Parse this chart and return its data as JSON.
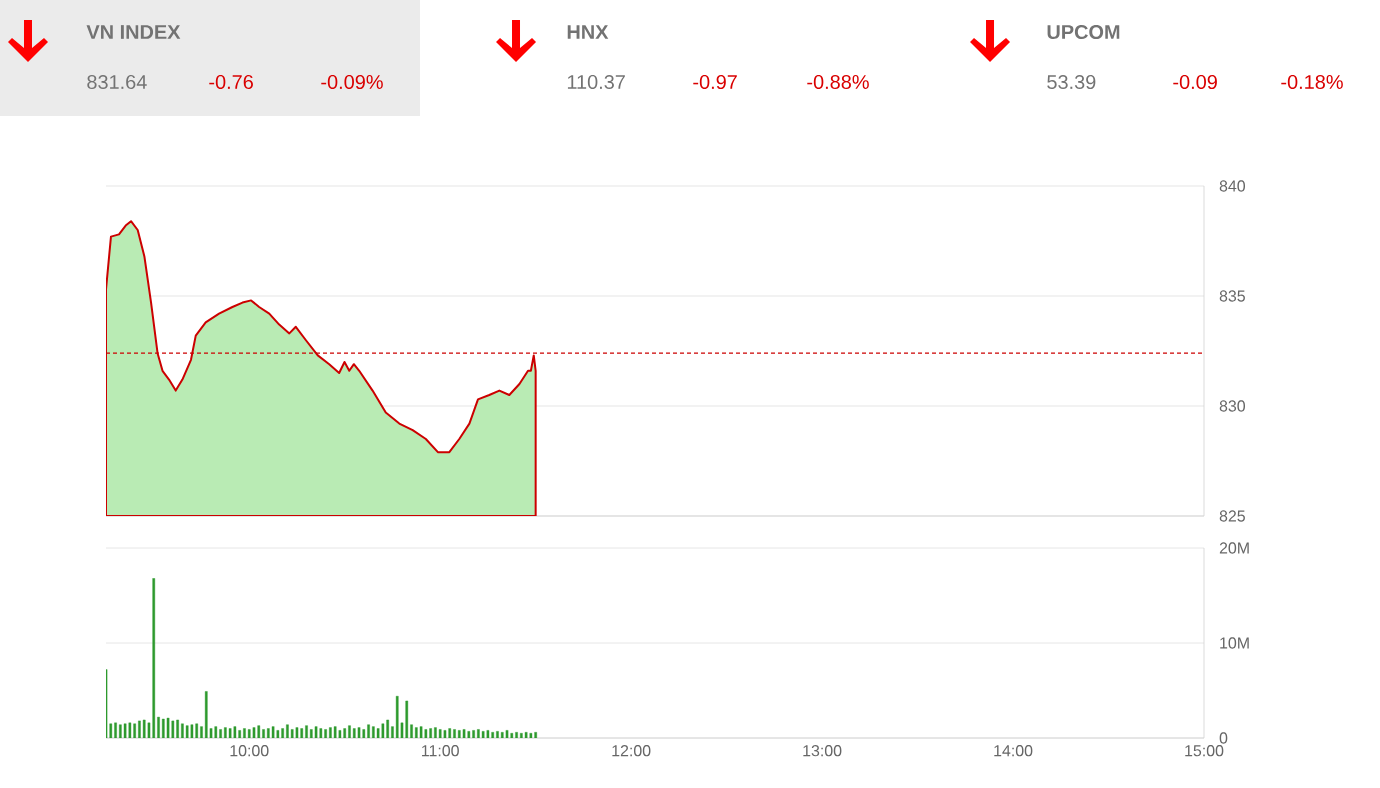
{
  "chart_data": [
    {
      "type": "other",
      "annotations": [
        "VN INDEX",
        "831.64",
        "-0.76",
        "-0.09%",
        "HNX",
        "110.37",
        "-0.97",
        "-0.88%",
        "UPCOM",
        "53.39",
        "-0.09",
        "-0.18%"
      ]
    },
    {
      "type": "area",
      "x": [
        9.25,
        9.276,
        9.318,
        9.353,
        9.381,
        9.416,
        9.451,
        9.486,
        9.52,
        9.546,
        9.58,
        9.615,
        9.65,
        9.695,
        9.72,
        9.772,
        9.842,
        9.912,
        9.965,
        10.01,
        10.052,
        10.105,
        10.157,
        10.21,
        10.244,
        10.296,
        10.359,
        10.419,
        10.471,
        10.499,
        10.524,
        10.548,
        10.576,
        10.646,
        10.715,
        10.786,
        10.856,
        10.925,
        10.988,
        11.048,
        11.1,
        11.153,
        11.198,
        11.257,
        11.31,
        11.362,
        11.415,
        11.46,
        11.475,
        11.49,
        11.5
      ],
      "series": [
        {
          "color": "#b9ebb4",
          "values": [
            835.3,
            837.7,
            837.8,
            838.2,
            838.4,
            838.0,
            836.8,
            834.7,
            832.4,
            831.6,
            831.2,
            830.7,
            831.2,
            832.1,
            833.2,
            833.8,
            834.2,
            834.5,
            834.7,
            834.8,
            834.5,
            834.2,
            833.7,
            833.3,
            833.6,
            833.0,
            832.3,
            831.9,
            831.5,
            832.0,
            831.6,
            831.9,
            831.6,
            830.7,
            829.7,
            829.2,
            828.9,
            828.5,
            827.9,
            827.9,
            828.5,
            829.2,
            830.3,
            830.5,
            830.7,
            830.5,
            831.0,
            831.6,
            831.6,
            832.3,
            831.6
          ]
        }
      ],
      "xlim": [
        9.25,
        15
      ],
      "ylim": [
        825,
        840
      ],
      "yticks": [
        825,
        830,
        835,
        840
      ],
      "grid": "y",
      "tick_labels": "y",
      "ref_lines": [
        {
          "axis": "y",
          "value": 832.4,
          "color": "#cc0000",
          "line_style": "dashed"
        }
      ]
    },
    {
      "type": "bar",
      "x": [
        9.25,
        9.275,
        9.3,
        9.325,
        9.35,
        9.375,
        9.4,
        9.425,
        9.45,
        9.475,
        9.5,
        9.525,
        9.55,
        9.575,
        9.6,
        9.625,
        9.65,
        9.675,
        9.7,
        9.725,
        9.75,
        9.775,
        9.8,
        9.825,
        9.85,
        9.875,
        9.9,
        9.925,
        9.95,
        9.975,
        10.0,
        10.025,
        10.05,
        10.075,
        10.1,
        10.125,
        10.15,
        10.175,
        10.2,
        10.225,
        10.25,
        10.275,
        10.3,
        10.325,
        10.35,
        10.375,
        10.4,
        10.425,
        10.45,
        10.475,
        10.5,
        10.525,
        10.55,
        10.575,
        10.6,
        10.625,
        10.65,
        10.675,
        10.7,
        10.725,
        10.75,
        10.775,
        10.8,
        10.825,
        10.85,
        10.875,
        10.9,
        10.925,
        10.95,
        10.975,
        11.0,
        11.025,
        11.05,
        11.075,
        11.1,
        11.125,
        11.15,
        11.175,
        11.2,
        11.225,
        11.25,
        11.275,
        11.3,
        11.325,
        11.35,
        11.375,
        11.4,
        11.425,
        11.45,
        11.475,
        11.5
      ],
      "values": [
        7.2,
        1.5,
        1.6,
        1.4,
        1.5,
        1.6,
        1.5,
        1.8,
        1.9,
        1.6,
        16.8,
        2.2,
        2.0,
        2.1,
        1.8,
        1.9,
        1.5,
        1.3,
        1.4,
        1.5,
        1.2,
        4.9,
        1.0,
        1.2,
        0.9,
        1.1,
        1.0,
        1.2,
        0.8,
        1.0,
        0.9,
        1.1,
        1.3,
        0.9,
        1.0,
        1.2,
        0.8,
        1.0,
        1.4,
        0.9,
        1.1,
        1.0,
        1.3,
        0.9,
        1.2,
        1.0,
        0.9,
        1.1,
        1.2,
        0.8,
        1.0,
        1.3,
        1.0,
        1.1,
        0.9,
        1.4,
        1.2,
        1.0,
        1.5,
        1.9,
        1.2,
        4.4,
        1.6,
        3.9,
        1.4,
        1.1,
        1.2,
        0.9,
        1.0,
        1.1,
        0.9,
        0.8,
        1.0,
        0.9,
        0.8,
        0.9,
        0.7,
        0.8,
        0.9,
        0.7,
        0.8,
        0.6,
        0.7,
        0.6,
        0.8,
        0.5,
        0.6,
        0.5,
        0.6,
        0.5,
        0.6
      ],
      "color": "#2e9a2e",
      "xlim": [
        9.25,
        15
      ],
      "xticks": [
        {
          "value": 10,
          "label": "10:00"
        },
        {
          "value": 11,
          "label": "11:00"
        },
        {
          "value": 12,
          "label": "12:00"
        },
        {
          "value": 13,
          "label": "13:00"
        },
        {
          "value": 14,
          "label": "14:00"
        },
        {
          "value": 15,
          "label": "15:00"
        }
      ],
      "ylim": [
        0,
        20
      ],
      "yticks": [
        0,
        {
          "value": 10,
          "label": "10M"
        },
        {
          "value": 20,
          "label": "20M"
        }
      ],
      "grid": "y"
    }
  ]
}
